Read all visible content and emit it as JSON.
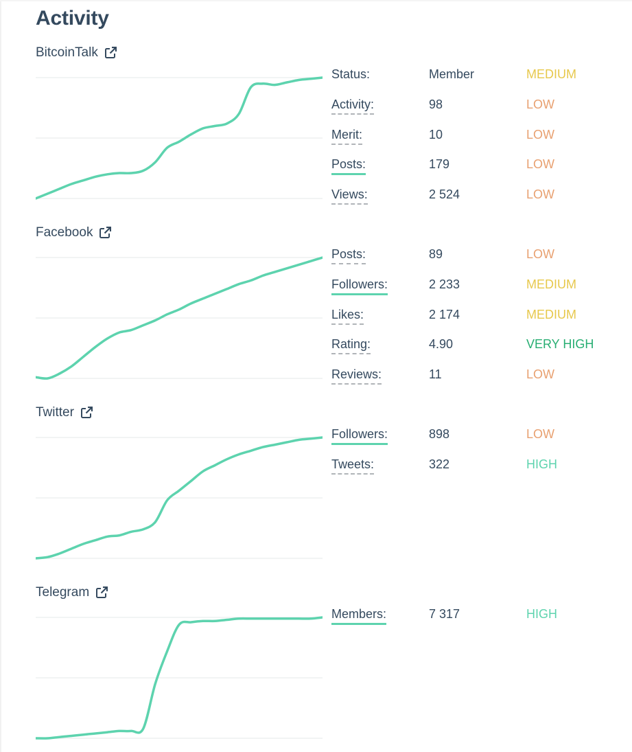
{
  "page": {
    "title": "Activity"
  },
  "colors": {
    "line": "#5dd3ae",
    "grid": "#e6e8ea",
    "text": "#34495e",
    "LOW": "#e8a070",
    "MEDIUM": "#e7c84b",
    "HIGH": "#5dd3ae",
    "VERY HIGH": "#27ae72"
  },
  "sections": [
    {
      "name": "BitcoinTalk",
      "link_icon": "external-link-icon",
      "chart_data": {
        "type": "line",
        "x": [
          0,
          1,
          2,
          3,
          4,
          5,
          6,
          7,
          8,
          9,
          10,
          11,
          12,
          13,
          14,
          15,
          16,
          17,
          18,
          19,
          20,
          21,
          22,
          23,
          24
        ],
        "y": [
          0,
          4,
          8,
          12,
          15,
          18,
          20,
          21,
          21,
          23,
          30,
          42,
          47,
          53,
          58,
          60,
          62,
          70,
          92,
          95,
          94,
          96,
          98,
          99,
          100
        ],
        "ylim": [
          0,
          100
        ],
        "grid": true
      },
      "metrics": [
        {
          "label": "Status:",
          "value": "Member",
          "level": "MEDIUM",
          "underline": "none"
        },
        {
          "label": "Activity:",
          "value": "98",
          "level": "LOW",
          "underline": "dashed"
        },
        {
          "label": "Merit:",
          "value": "10",
          "level": "LOW",
          "underline": "dashed"
        },
        {
          "label": "Posts:",
          "value": "179",
          "level": "LOW",
          "underline": "solid"
        },
        {
          "label": "Views:",
          "value": "2 524",
          "level": "LOW",
          "underline": "dashed"
        }
      ]
    },
    {
      "name": "Facebook",
      "link_icon": "external-link-icon",
      "chart_data": {
        "type": "line",
        "x": [
          0,
          1,
          2,
          3,
          4,
          5,
          6,
          7,
          8,
          9,
          10,
          11,
          12,
          13,
          14,
          15,
          16,
          17,
          18,
          19,
          20,
          21,
          22,
          23,
          24
        ],
        "y": [
          1,
          0,
          4,
          10,
          18,
          26,
          33,
          38,
          40,
          44,
          48,
          53,
          57,
          62,
          66,
          70,
          74,
          78,
          81,
          85,
          88,
          91,
          94,
          97,
          100
        ],
        "ylim": [
          0,
          100
        ],
        "grid": true
      },
      "metrics": [
        {
          "label": "Posts:",
          "value": "89",
          "level": "LOW",
          "underline": "dashed"
        },
        {
          "label": "Followers:",
          "value": "2 233",
          "level": "MEDIUM",
          "underline": "solid"
        },
        {
          "label": "Likes:",
          "value": "2 174",
          "level": "MEDIUM",
          "underline": "dashed"
        },
        {
          "label": "Rating:",
          "value": "4.90",
          "level": "VERY HIGH",
          "underline": "dashed"
        },
        {
          "label": "Reviews:",
          "value": "11",
          "level": "LOW",
          "underline": "dashed"
        }
      ]
    },
    {
      "name": "Twitter",
      "link_icon": "external-link-icon",
      "chart_data": {
        "type": "line",
        "x": [
          0,
          1,
          2,
          3,
          4,
          5,
          6,
          7,
          8,
          9,
          10,
          11,
          12,
          13,
          14,
          15,
          16,
          17,
          18,
          19,
          20,
          21,
          22,
          23,
          24
        ],
        "y": [
          0,
          1,
          4,
          8,
          12,
          15,
          18,
          19,
          22,
          24,
          30,
          48,
          56,
          64,
          72,
          77,
          82,
          86,
          89,
          92,
          94,
          96,
          98,
          99,
          100
        ],
        "ylim": [
          0,
          100
        ],
        "grid": true
      },
      "metrics": [
        {
          "label": "Followers:",
          "value": "898",
          "level": "LOW",
          "underline": "solid"
        },
        {
          "label": "Tweets:",
          "value": "322",
          "level": "HIGH",
          "underline": "dashed"
        }
      ]
    },
    {
      "name": "Telegram",
      "link_icon": "external-link-icon",
      "chart_data": {
        "type": "line",
        "x": [
          0,
          1,
          2,
          3,
          4,
          5,
          6,
          7,
          8,
          9,
          10,
          11,
          12,
          13,
          14,
          15,
          16,
          17,
          18,
          19,
          20,
          21,
          22,
          23,
          24
        ],
        "y": [
          0,
          0,
          1,
          2,
          3,
          4,
          5,
          6,
          6,
          8,
          45,
          72,
          94,
          96,
          97,
          97,
          98,
          99,
          99,
          99,
          99,
          99,
          99,
          99,
          100
        ],
        "ylim": [
          0,
          100
        ],
        "grid": true
      },
      "metrics": [
        {
          "label": "Members:",
          "value": "7 317",
          "level": "HIGH",
          "underline": "solid"
        }
      ]
    }
  ]
}
